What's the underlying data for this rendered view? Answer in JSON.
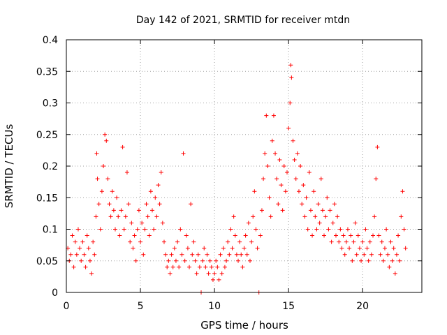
{
  "chart_data": {
    "type": "scatter",
    "title": "Day 142 of 2021, SRMTID for receiver mtdn",
    "xlabel": "GPS time / hours",
    "ylabel": "SRMTID / TECUs",
    "xlim": [
      0,
      24
    ],
    "ylim": [
      0,
      0.4
    ],
    "x_ticks": [
      0,
      5,
      10,
      15,
      20
    ],
    "x_tick_labels": [
      "0",
      "5",
      "10",
      "15",
      "20"
    ],
    "y_ticks": [
      0,
      0.05,
      0.1,
      0.15,
      0.2,
      0.25,
      0.3,
      0.35,
      0.4
    ],
    "y_tick_labels": [
      "0",
      "0.05",
      "0.1",
      "0.15",
      "0.2",
      "0.25",
      "0.3",
      "0.35",
      "0.4"
    ],
    "grid": true,
    "marker": "+",
    "series": [
      {
        "name": "SRMTID",
        "color": "#ff0000",
        "points": [
          [
            0.1,
            0.07
          ],
          [
            0.2,
            0.05
          ],
          [
            0.3,
            0.06
          ],
          [
            0.4,
            0.09
          ],
          [
            0.5,
            0.04
          ],
          [
            0.6,
            0.08
          ],
          [
            0.7,
            0.06
          ],
          [
            0.8,
            0.1
          ],
          [
            0.9,
            0.07
          ],
          [
            1.0,
            0.05
          ],
          [
            1.1,
            0.08
          ],
          [
            1.2,
            0.06
          ],
          [
            1.3,
            0.04
          ],
          [
            1.4,
            0.09
          ],
          [
            1.5,
            0.07
          ],
          [
            1.6,
            0.05
          ],
          [
            1.7,
            0.03
          ],
          [
            1.8,
            0.08
          ],
          [
            1.9,
            0.06
          ],
          [
            2.0,
            0.12
          ],
          [
            2.05,
            0.22
          ],
          [
            2.1,
            0.18
          ],
          [
            2.2,
            0.14
          ],
          [
            2.3,
            0.1
          ],
          [
            2.4,
            0.16
          ],
          [
            2.5,
            0.2
          ],
          [
            2.6,
            0.25
          ],
          [
            2.7,
            0.24
          ],
          [
            2.8,
            0.18
          ],
          [
            2.9,
            0.14
          ],
          [
            3.0,
            0.12
          ],
          [
            3.1,
            0.16
          ],
          [
            3.2,
            0.13
          ],
          [
            3.3,
            0.1
          ],
          [
            3.4,
            0.15
          ],
          [
            3.5,
            0.12
          ],
          [
            3.6,
            0.09
          ],
          [
            3.7,
            0.13
          ],
          [
            3.8,
            0.23
          ],
          [
            3.9,
            0.1
          ],
          [
            4.0,
            0.12
          ],
          [
            4.1,
            0.19
          ],
          [
            4.2,
            0.14
          ],
          [
            4.3,
            0.08
          ],
          [
            4.4,
            0.11
          ],
          [
            4.5,
            0.07
          ],
          [
            4.6,
            0.09
          ],
          [
            4.7,
            0.05
          ],
          [
            4.8,
            0.1
          ],
          [
            4.9,
            0.13
          ],
          [
            5.0,
            0.08
          ],
          [
            5.1,
            0.11
          ],
          [
            5.2,
            0.06
          ],
          [
            5.3,
            0.1
          ],
          [
            5.4,
            0.14
          ],
          [
            5.5,
            0.12
          ],
          [
            5.6,
            0.09
          ],
          [
            5.7,
            0.16
          ],
          [
            5.8,
            0.13
          ],
          [
            5.9,
            0.1
          ],
          [
            6.0,
            0.15
          ],
          [
            6.1,
            0.12
          ],
          [
            6.2,
            0.17
          ],
          [
            6.3,
            0.14
          ],
          [
            6.4,
            0.19
          ],
          [
            6.5,
            0.11
          ],
          [
            6.6,
            0.08
          ],
          [
            6.7,
            0.06
          ],
          [
            6.8,
            0.04
          ],
          [
            6.9,
            0.05
          ],
          [
            7.0,
            0.03
          ],
          [
            7.1,
            0.06
          ],
          [
            7.2,
            0.04
          ],
          [
            7.3,
            0.07
          ],
          [
            7.4,
            0.05
          ],
          [
            7.5,
            0.08
          ],
          [
            7.6,
            0.04
          ],
          [
            7.7,
            0.1
          ],
          [
            7.8,
            0.06
          ],
          [
            7.9,
            0.22
          ],
          [
            8.0,
            0.05
          ],
          [
            8.1,
            0.09
          ],
          [
            8.2,
            0.07
          ],
          [
            8.3,
            0.04
          ],
          [
            8.4,
            0.14
          ],
          [
            8.5,
            0.06
          ],
          [
            8.6,
            0.08
          ],
          [
            8.7,
            0.05
          ],
          [
            8.8,
            0.03
          ],
          [
            8.9,
            0.06
          ],
          [
            9.0,
            0.04
          ],
          [
            9.1,
            0.0
          ],
          [
            9.2,
            0.05
          ],
          [
            9.3,
            0.07
          ],
          [
            9.4,
            0.04
          ],
          [
            9.5,
            0.06
          ],
          [
            9.6,
            0.03
          ],
          [
            9.7,
            0.05
          ],
          [
            9.8,
            0.04
          ],
          [
            9.9,
            0.02
          ],
          [
            10.0,
            0.03
          ],
          [
            10.1,
            0.05
          ],
          [
            10.2,
            0.04
          ],
          [
            10.3,
            0.02
          ],
          [
            10.4,
            0.06
          ],
          [
            10.5,
            0.03
          ],
          [
            10.6,
            0.07
          ],
          [
            10.7,
            0.04
          ],
          [
            10.8,
            0.05
          ],
          [
            10.9,
            0.08
          ],
          [
            11.0,
            0.06
          ],
          [
            11.1,
            0.1
          ],
          [
            11.2,
            0.07
          ],
          [
            11.3,
            0.12
          ],
          [
            11.4,
            0.09
          ],
          [
            11.5,
            0.06
          ],
          [
            11.6,
            0.05
          ],
          [
            11.7,
            0.08
          ],
          [
            11.8,
            0.06
          ],
          [
            11.9,
            0.04
          ],
          [
            12.0,
            0.07
          ],
          [
            12.1,
            0.09
          ],
          [
            12.2,
            0.06
          ],
          [
            12.3,
            0.11
          ],
          [
            12.4,
            0.05
          ],
          [
            12.5,
            0.08
          ],
          [
            12.6,
            0.12
          ],
          [
            12.7,
            0.16
          ],
          [
            12.8,
            0.1
          ],
          [
            12.9,
            0.07
          ],
          [
            13.0,
            0.0
          ],
          [
            13.1,
            0.09
          ],
          [
            13.2,
            0.13
          ],
          [
            13.3,
            0.18
          ],
          [
            13.4,
            0.22
          ],
          [
            13.5,
            0.28
          ],
          [
            13.6,
            0.2
          ],
          [
            13.7,
            0.15
          ],
          [
            13.8,
            0.12
          ],
          [
            13.9,
            0.24
          ],
          [
            14.0,
            0.28
          ],
          [
            14.1,
            0.22
          ],
          [
            14.2,
            0.18
          ],
          [
            14.3,
            0.14
          ],
          [
            14.4,
            0.21
          ],
          [
            14.5,
            0.17
          ],
          [
            14.6,
            0.13
          ],
          [
            14.7,
            0.2
          ],
          [
            14.8,
            0.16
          ],
          [
            14.9,
            0.19
          ],
          [
            15.0,
            0.26
          ],
          [
            15.1,
            0.3
          ],
          [
            15.15,
            0.36
          ],
          [
            15.2,
            0.34
          ],
          [
            15.3,
            0.24
          ],
          [
            15.4,
            0.21
          ],
          [
            15.5,
            0.18
          ],
          [
            15.6,
            0.22
          ],
          [
            15.7,
            0.16
          ],
          [
            15.8,
            0.2
          ],
          [
            15.9,
            0.14
          ],
          [
            16.0,
            0.17
          ],
          [
            16.1,
            0.12
          ],
          [
            16.2,
            0.15
          ],
          [
            16.3,
            0.1
          ],
          [
            16.4,
            0.19
          ],
          [
            16.5,
            0.13
          ],
          [
            16.6,
            0.09
          ],
          [
            16.7,
            0.16
          ],
          [
            16.8,
            0.12
          ],
          [
            16.9,
            0.1
          ],
          [
            17.0,
            0.14
          ],
          [
            17.1,
            0.11
          ],
          [
            17.2,
            0.18
          ],
          [
            17.3,
            0.13
          ],
          [
            17.4,
            0.09
          ],
          [
            17.5,
            0.12
          ],
          [
            17.6,
            0.15
          ],
          [
            17.7,
            0.1
          ],
          [
            17.8,
            0.13
          ],
          [
            17.9,
            0.08
          ],
          [
            18.0,
            0.11
          ],
          [
            18.1,
            0.14
          ],
          [
            18.2,
            0.09
          ],
          [
            18.3,
            0.12
          ],
          [
            18.4,
            0.08
          ],
          [
            18.5,
            0.1
          ],
          [
            18.6,
            0.07
          ],
          [
            18.7,
            0.09
          ],
          [
            18.8,
            0.06
          ],
          [
            18.9,
            0.08
          ],
          [
            19.0,
            0.1
          ],
          [
            19.1,
            0.07
          ],
          [
            19.2,
            0.09
          ],
          [
            19.3,
            0.05
          ],
          [
            19.4,
            0.08
          ],
          [
            19.5,
            0.11
          ],
          [
            19.6,
            0.06
          ],
          [
            19.7,
            0.09
          ],
          [
            19.8,
            0.07
          ],
          [
            19.9,
            0.05
          ],
          [
            20.0,
            0.08
          ],
          [
            20.1,
            0.06
          ],
          [
            20.2,
            0.1
          ],
          [
            20.3,
            0.07
          ],
          [
            20.4,
            0.05
          ],
          [
            20.5,
            0.08
          ],
          [
            20.6,
            0.06
          ],
          [
            20.7,
            0.09
          ],
          [
            20.8,
            0.12
          ],
          [
            20.9,
            0.18
          ],
          [
            21.0,
            0.23
          ],
          [
            21.1,
            0.09
          ],
          [
            21.2,
            0.06
          ],
          [
            21.3,
            0.08
          ],
          [
            21.4,
            0.05
          ],
          [
            21.5,
            0.07
          ],
          [
            21.6,
            0.1
          ],
          [
            21.7,
            0.06
          ],
          [
            21.8,
            0.04
          ],
          [
            21.9,
            0.08
          ],
          [
            22.0,
            0.05
          ],
          [
            22.1,
            0.07
          ],
          [
            22.2,
            0.03
          ],
          [
            22.3,
            0.06
          ],
          [
            22.4,
            0.09
          ],
          [
            22.5,
            0.05
          ],
          [
            22.6,
            0.12
          ],
          [
            22.7,
            0.16
          ],
          [
            22.8,
            0.1
          ],
          [
            22.9,
            0.07
          ]
        ]
      }
    ]
  }
}
